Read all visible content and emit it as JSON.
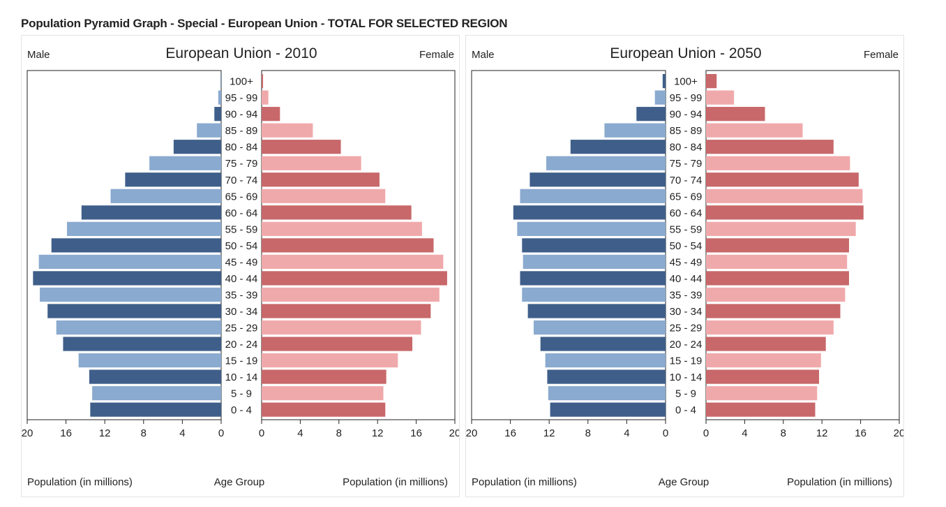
{
  "page": {
    "title": "Population Pyramid Graph - Special - European Union - TOTAL FOR SELECTED REGION"
  },
  "colors": {
    "male_dark": "#3f5f8a",
    "male_light": "#8aaacf",
    "female_dark": "#c8686a",
    "female_light": "#f0a9ab"
  },
  "chart_data": [
    {
      "type": "bar",
      "orientation": "horizontal",
      "title": "European Union - 2010",
      "left_label": "Male",
      "right_label": "Female",
      "xlabel_left": "Population (in millions)",
      "xlabel_center": "Age Group",
      "xlabel_right": "Population (in millions)",
      "xlim": [
        0,
        20
      ],
      "xticks": [
        "20",
        "16",
        "12",
        "8",
        "4",
        "0"
      ],
      "xticks_right": [
        "0",
        "4",
        "8",
        "12",
        "16",
        "20"
      ],
      "categories": [
        "100+",
        "95 - 99",
        "90 - 94",
        "85 - 89",
        "80 - 84",
        "75 - 79",
        "70 - 74",
        "65 - 69",
        "60 - 64",
        "55 - 59",
        "50 - 54",
        "45 - 49",
        "40 - 44",
        "35 - 39",
        "30 - 34",
        "25 - 29",
        "20 - 24",
        "15 - 19",
        "10 - 14",
        "5 - 9",
        "0 - 4"
      ],
      "series": [
        {
          "name": "Male",
          "values": [
            0.05,
            0.3,
            0.7,
            2.5,
            4.9,
            7.4,
            9.9,
            11.4,
            14.4,
            15.9,
            17.5,
            18.8,
            19.4,
            18.7,
            17.9,
            17.0,
            16.3,
            14.7,
            13.6,
            13.3,
            13.5
          ]
        },
        {
          "name": "Female",
          "values": [
            0.15,
            0.7,
            1.9,
            5.3,
            8.2,
            10.3,
            12.2,
            12.8,
            15.5,
            16.6,
            17.8,
            18.8,
            19.2,
            18.4,
            17.5,
            16.5,
            15.6,
            14.1,
            12.9,
            12.6,
            12.8
          ]
        }
      ]
    },
    {
      "type": "bar",
      "orientation": "horizontal",
      "title": "European Union - 2050",
      "left_label": "Male",
      "right_label": "Female",
      "xlabel_left": "Population (in millions)",
      "xlabel_center": "Age Group",
      "xlabel_right": "Population (in millions)",
      "xlim": [
        0,
        20
      ],
      "xticks": [
        "20",
        "16",
        "12",
        "8",
        "4",
        "0"
      ],
      "xticks_right": [
        "0",
        "4",
        "8",
        "12",
        "16",
        "20"
      ],
      "categories": [
        "100+",
        "95 - 99",
        "90 - 94",
        "85 - 89",
        "80 - 84",
        "75 - 79",
        "70 - 74",
        "65 - 69",
        "60 - 64",
        "55 - 59",
        "50 - 54",
        "45 - 49",
        "40 - 44",
        "35 - 39",
        "30 - 34",
        "25 - 29",
        "20 - 24",
        "15 - 19",
        "10 - 14",
        "5 - 9",
        "0 - 4"
      ],
      "series": [
        {
          "name": "Male",
          "values": [
            0.3,
            1.1,
            3.0,
            6.3,
            9.8,
            12.3,
            14.0,
            15.0,
            15.7,
            15.3,
            14.8,
            14.7,
            15.0,
            14.8,
            14.2,
            13.6,
            12.9,
            12.4,
            12.2,
            12.1,
            11.9
          ]
        },
        {
          "name": "Female",
          "values": [
            1.1,
            2.9,
            6.1,
            10.0,
            13.2,
            14.9,
            15.8,
            16.2,
            16.3,
            15.5,
            14.8,
            14.6,
            14.8,
            14.4,
            13.9,
            13.2,
            12.4,
            11.9,
            11.7,
            11.5,
            11.3
          ]
        }
      ]
    }
  ]
}
